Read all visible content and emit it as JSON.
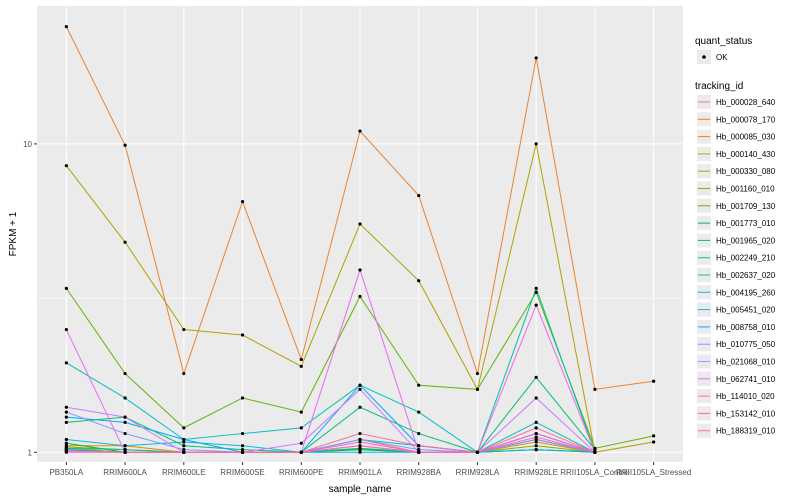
{
  "chart_data": {
    "type": "line",
    "xlabel": "sample_name",
    "ylabel": "FPKM + 1",
    "y_scale": "log10",
    "ylim": [
      0.93,
      28
    ],
    "y_ticks": [
      1,
      10
    ],
    "y_tick_labels": [
      "1",
      "10"
    ],
    "grid": true,
    "panel_background": "#EBEBEB",
    "legend_position": "right",
    "categories": [
      "PB350LA",
      "RRIM600LA",
      "RRIM600LE",
      "RRIM600SE",
      "RRIM600PE",
      "RRIM901LA",
      "RRIM928BA",
      "RRIM928LA",
      "RRIM928LE",
      "RRII105LA_Control",
      "RRII105LA_Stressed"
    ],
    "legend_quant": {
      "title": "quant_status",
      "label": "OK"
    },
    "legend_tracking_title": "tracking_id",
    "series": [
      {
        "name": "Hb_000028_640",
        "color": "#F8766D",
        "values": [
          1.02,
          1.0,
          1.0,
          1.0,
          1.0,
          1.1,
          1.0,
          1.0,
          1.1,
          1.0,
          null
        ]
      },
      {
        "name": "Hb_000078_170",
        "color": "#EA8331",
        "values": [
          24.0,
          9.9,
          1.8,
          6.5,
          2.0,
          11.0,
          6.8,
          1.8,
          19.0,
          1.6,
          1.7
        ]
      },
      {
        "name": "Hb_000085_030",
        "color": "#DC8D00",
        "values": [
          1.05,
          1.05,
          1.0,
          1.0,
          1.0,
          1.05,
          1.0,
          1.0,
          1.08,
          1.0,
          null
        ]
      },
      {
        "name": "Hb_000140_430",
        "color": "#C89A00",
        "values": [
          1.03,
          1.0,
          1.0,
          1.0,
          1.0,
          1.02,
          1.0,
          1.0,
          1.02,
          1.0,
          null
        ]
      },
      {
        "name": "Hb_000330_080",
        "color": "#AFA200",
        "values": [
          8.5,
          4.8,
          2.5,
          2.4,
          1.9,
          5.5,
          3.6,
          1.6,
          10.0,
          1.0,
          1.08
        ]
      },
      {
        "name": "Hb_001160_010",
        "color": "#8FAA00",
        "values": [
          1.04,
          1.02,
          1.0,
          1.0,
          1.0,
          1.03,
          1.0,
          1.0,
          1.05,
          1.0,
          null
        ]
      },
      {
        "name": "Hb_001709_130",
        "color": "#5EB300",
        "values": [
          3.4,
          1.8,
          1.2,
          1.5,
          1.35,
          3.2,
          1.65,
          1.6,
          3.3,
          1.03,
          1.13
        ]
      },
      {
        "name": "Hb_001773_010",
        "color": "#00BA38",
        "values": [
          1.07,
          1.0,
          1.0,
          1.0,
          1.0,
          1.02,
          1.0,
          1.0,
          1.02,
          1.0,
          null
        ]
      },
      {
        "name": "Hb_001965_020",
        "color": "#00BF74",
        "values": [
          1.25,
          1.3,
          1.05,
          1.02,
          1.0,
          1.4,
          1.15,
          1.0,
          1.75,
          1.02,
          null
        ]
      },
      {
        "name": "Hb_002249_210",
        "color": "#00C19F",
        "values": [
          1.03,
          1.02,
          1.0,
          1.0,
          1.0,
          1.03,
          1.0,
          1.0,
          3.4,
          1.0,
          null
        ]
      },
      {
        "name": "Hb_002637_020",
        "color": "#00C0C2",
        "values": [
          1.95,
          1.5,
          1.1,
          1.15,
          1.2,
          1.65,
          1.35,
          1.0,
          1.25,
          1.0,
          null
        ]
      },
      {
        "name": "Hb_004195_260",
        "color": "#00BCDB",
        "values": [
          1.1,
          1.05,
          1.08,
          1.05,
          1.0,
          1.1,
          1.05,
          1.0,
          1.1,
          1.0,
          null
        ]
      },
      {
        "name": "Hb_005451_020",
        "color": "#00B5EE",
        "values": [
          1.02,
          1.0,
          1.0,
          1.0,
          1.0,
          1.0,
          1.0,
          1.0,
          1.02,
          1.0,
          null
        ]
      },
      {
        "name": "Hb_008758_010",
        "color": "#00A9FF",
        "values": [
          1.3,
          1.25,
          1.1,
          1.0,
          1.0,
          1.65,
          1.05,
          1.0,
          1.15,
          1.0,
          null
        ]
      },
      {
        "name": "Hb_010775_050",
        "color": "#7F96FF",
        "values": [
          1.35,
          1.15,
          1.02,
          1.0,
          1.0,
          1.1,
          1.02,
          1.0,
          1.1,
          1.0,
          null
        ]
      },
      {
        "name": "Hb_021068_010",
        "color": "#C77CFF",
        "values": [
          1.4,
          1.3,
          1.0,
          1.0,
          1.07,
          1.6,
          1.0,
          1.0,
          1.5,
          1.0,
          null
        ]
      },
      {
        "name": "Hb_062741_010",
        "color": "#E76BF3",
        "values": [
          2.5,
          1.0,
          1.0,
          1.0,
          1.0,
          3.9,
          1.0,
          1.0,
          3.0,
          1.0,
          null
        ]
      },
      {
        "name": "Hb_114010_020",
        "color": "#FA62DB",
        "values": [
          1.0,
          1.0,
          1.0,
          1.0,
          1.0,
          1.05,
          1.0,
          1.0,
          1.12,
          1.0,
          null
        ]
      },
      {
        "name": "Hb_153142_010",
        "color": "#FF62BC",
        "values": [
          1.01,
          1.0,
          1.0,
          1.0,
          1.0,
          1.08,
          1.0,
          1.0,
          1.15,
          1.0,
          null
        ]
      },
      {
        "name": "Hb_188319_010",
        "color": "#FF6C91",
        "values": [
          1.01,
          1.0,
          1.0,
          1.0,
          1.0,
          1.15,
          1.05,
          1.0,
          1.2,
          1.0,
          null
        ]
      }
    ]
  }
}
